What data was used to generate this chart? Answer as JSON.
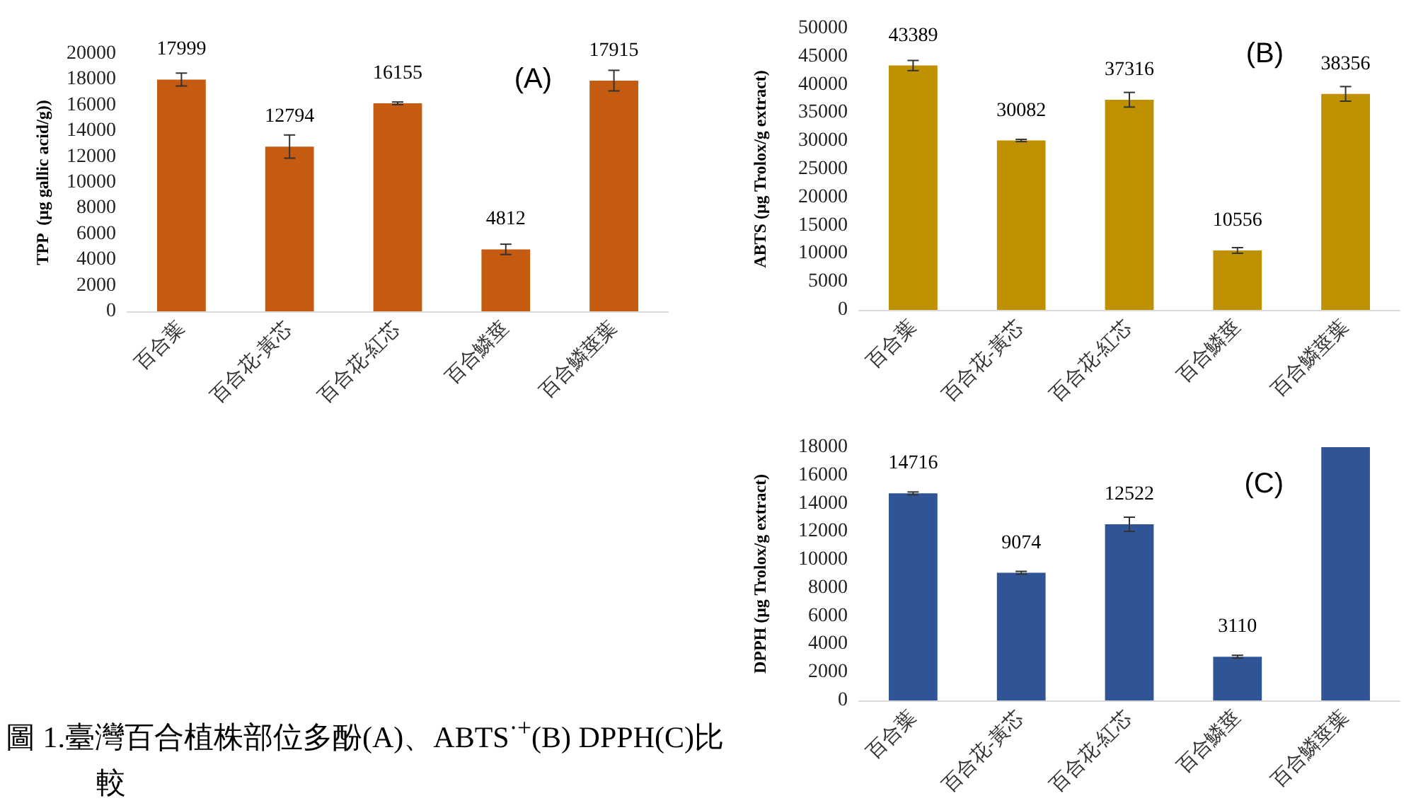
{
  "chart_data": [
    {
      "type": "bar",
      "ylabel": "TPP  (μg gallic acid/g))",
      "categories": [
        "百合葉",
        "百合花-黃芯",
        "百合花-紅芯",
        "百合鱗莖",
        "百合鱗莖葉"
      ],
      "values": [
        17999,
        12794,
        16155,
        4812,
        17915
      ],
      "errors": [
        500,
        900,
        100,
        400,
        800
      ],
      "color": "#c55a11",
      "ylim": [
        0,
        20000
      ],
      "yticks": [
        0,
        2000,
        4000,
        6000,
        8000,
        10000,
        12000,
        14000,
        16000,
        18000,
        20000
      ],
      "data_labels": true,
      "annotations": [
        "(A)",
        "圖 1.臺灣百合植株部位多酚(A)、ABTS$^{·+}$(B) DPPH(C)比較"
      ]
    },
    {
      "type": "bar",
      "ylabel": "ABTS (μg Trolox/g extract)",
      "categories": [
        "百合葉",
        "百合花-黃芯",
        "百合花-紅芯",
        "百合鱗莖",
        "百合鱗莖葉"
      ],
      "values": [
        43389,
        30082,
        37316,
        10556,
        38356
      ],
      "errors": [
        900,
        200,
        1300,
        500,
        1300
      ],
      "color": "#bf9000",
      "ylim": [
        0,
        50000
      ],
      "yticks": [
        0,
        5000,
        10000,
        15000,
        20000,
        25000,
        30000,
        35000,
        40000,
        45000,
        50000
      ],
      "data_labels": true,
      "annotations": [
        "(B)"
      ]
    },
    {
      "type": "bar",
      "ylabel": "DPPH (μg Trolox/g extract)",
      "categories": [
        "百合葉",
        "百合花-黃芯",
        "百合花-紅芯",
        "百合鱗莖",
        "百合鱗莖葉"
      ],
      "values": [
        14716,
        9074,
        12522,
        3110,
        18000
      ],
      "errors": [
        100,
        100,
        500,
        100,
        null
      ],
      "color": "#2f5597",
      "value_labels": [
        "14716",
        "9074",
        "12522",
        "3110",
        null
      ],
      "ylim": [
        0,
        18000
      ],
      "yticks": [
        0,
        2000,
        4000,
        6000,
        8000,
        10000,
        12000,
        14000,
        16000,
        18000
      ],
      "annotations": [
        "(C)"
      ]
    }
  ]
}
